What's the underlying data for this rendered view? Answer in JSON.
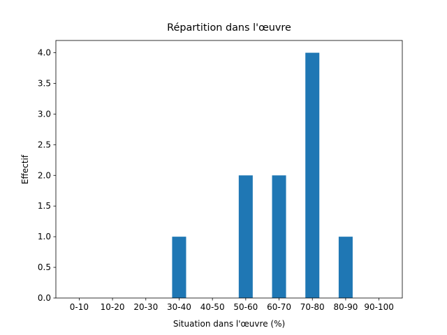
{
  "chart_data": {
    "type": "bar",
    "title": "Répartition dans l'œuvre",
    "x_label": "Situation dans l'œuvre (%)",
    "y_label": "Effectif",
    "categories": [
      "0-10",
      "10-20",
      "20-30",
      "30-40",
      "40-50",
      "50-60",
      "60-70",
      "70-80",
      "80-90",
      "90-100"
    ],
    "values": [
      0,
      0,
      0,
      1,
      0,
      2,
      2,
      4,
      1,
      0
    ],
    "color": "#1f77b4",
    "ylim": [
      0,
      4.2
    ],
    "yticks": [
      {
        "value": 0,
        "label": "0.0"
      },
      {
        "value": 0.5,
        "label": "0.5"
      },
      {
        "value": 1,
        "label": "1.0"
      },
      {
        "value": 1.5,
        "label": "1.5"
      },
      {
        "value": 2,
        "label": "2.0"
      },
      {
        "value": 2.5,
        "label": "2.5"
      },
      {
        "value": 3,
        "label": "3.0"
      },
      {
        "value": 3.5,
        "label": "3.5"
      },
      {
        "value": 4,
        "label": "4.0"
      }
    ],
    "grid": false
  }
}
